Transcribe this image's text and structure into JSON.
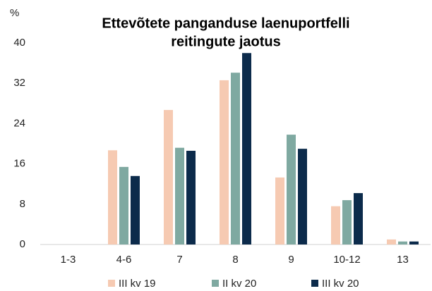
{
  "chart_data": {
    "type": "bar",
    "title": [
      "Ettevõtete panganduse laenuportfelli",
      "reitingute jaotus"
    ],
    "y_label": "%",
    "categories": [
      "1-3",
      "4-6",
      "7",
      "8",
      "9",
      "10-12",
      "13"
    ],
    "series": [
      {
        "name": "III kv 19",
        "color": "#f6cab2",
        "values": [
          0,
          18.7,
          26.7,
          32.6,
          13.3,
          7.6,
          1.0
        ]
      },
      {
        "name": "II kv 20",
        "color": "#7fa9a1",
        "values": [
          0,
          15.4,
          19.2,
          34.1,
          21.8,
          8.8,
          0.6
        ]
      },
      {
        "name": "III kv 20",
        "color": "#0c2b4b",
        "values": [
          0,
          13.6,
          18.6,
          38.0,
          19.0,
          10.2,
          0.6
        ]
      }
    ],
    "ylim": [
      0,
      40
    ],
    "yticks": [
      0,
      8,
      16,
      24,
      32,
      40
    ],
    "grid": false,
    "legend": "bottom"
  }
}
